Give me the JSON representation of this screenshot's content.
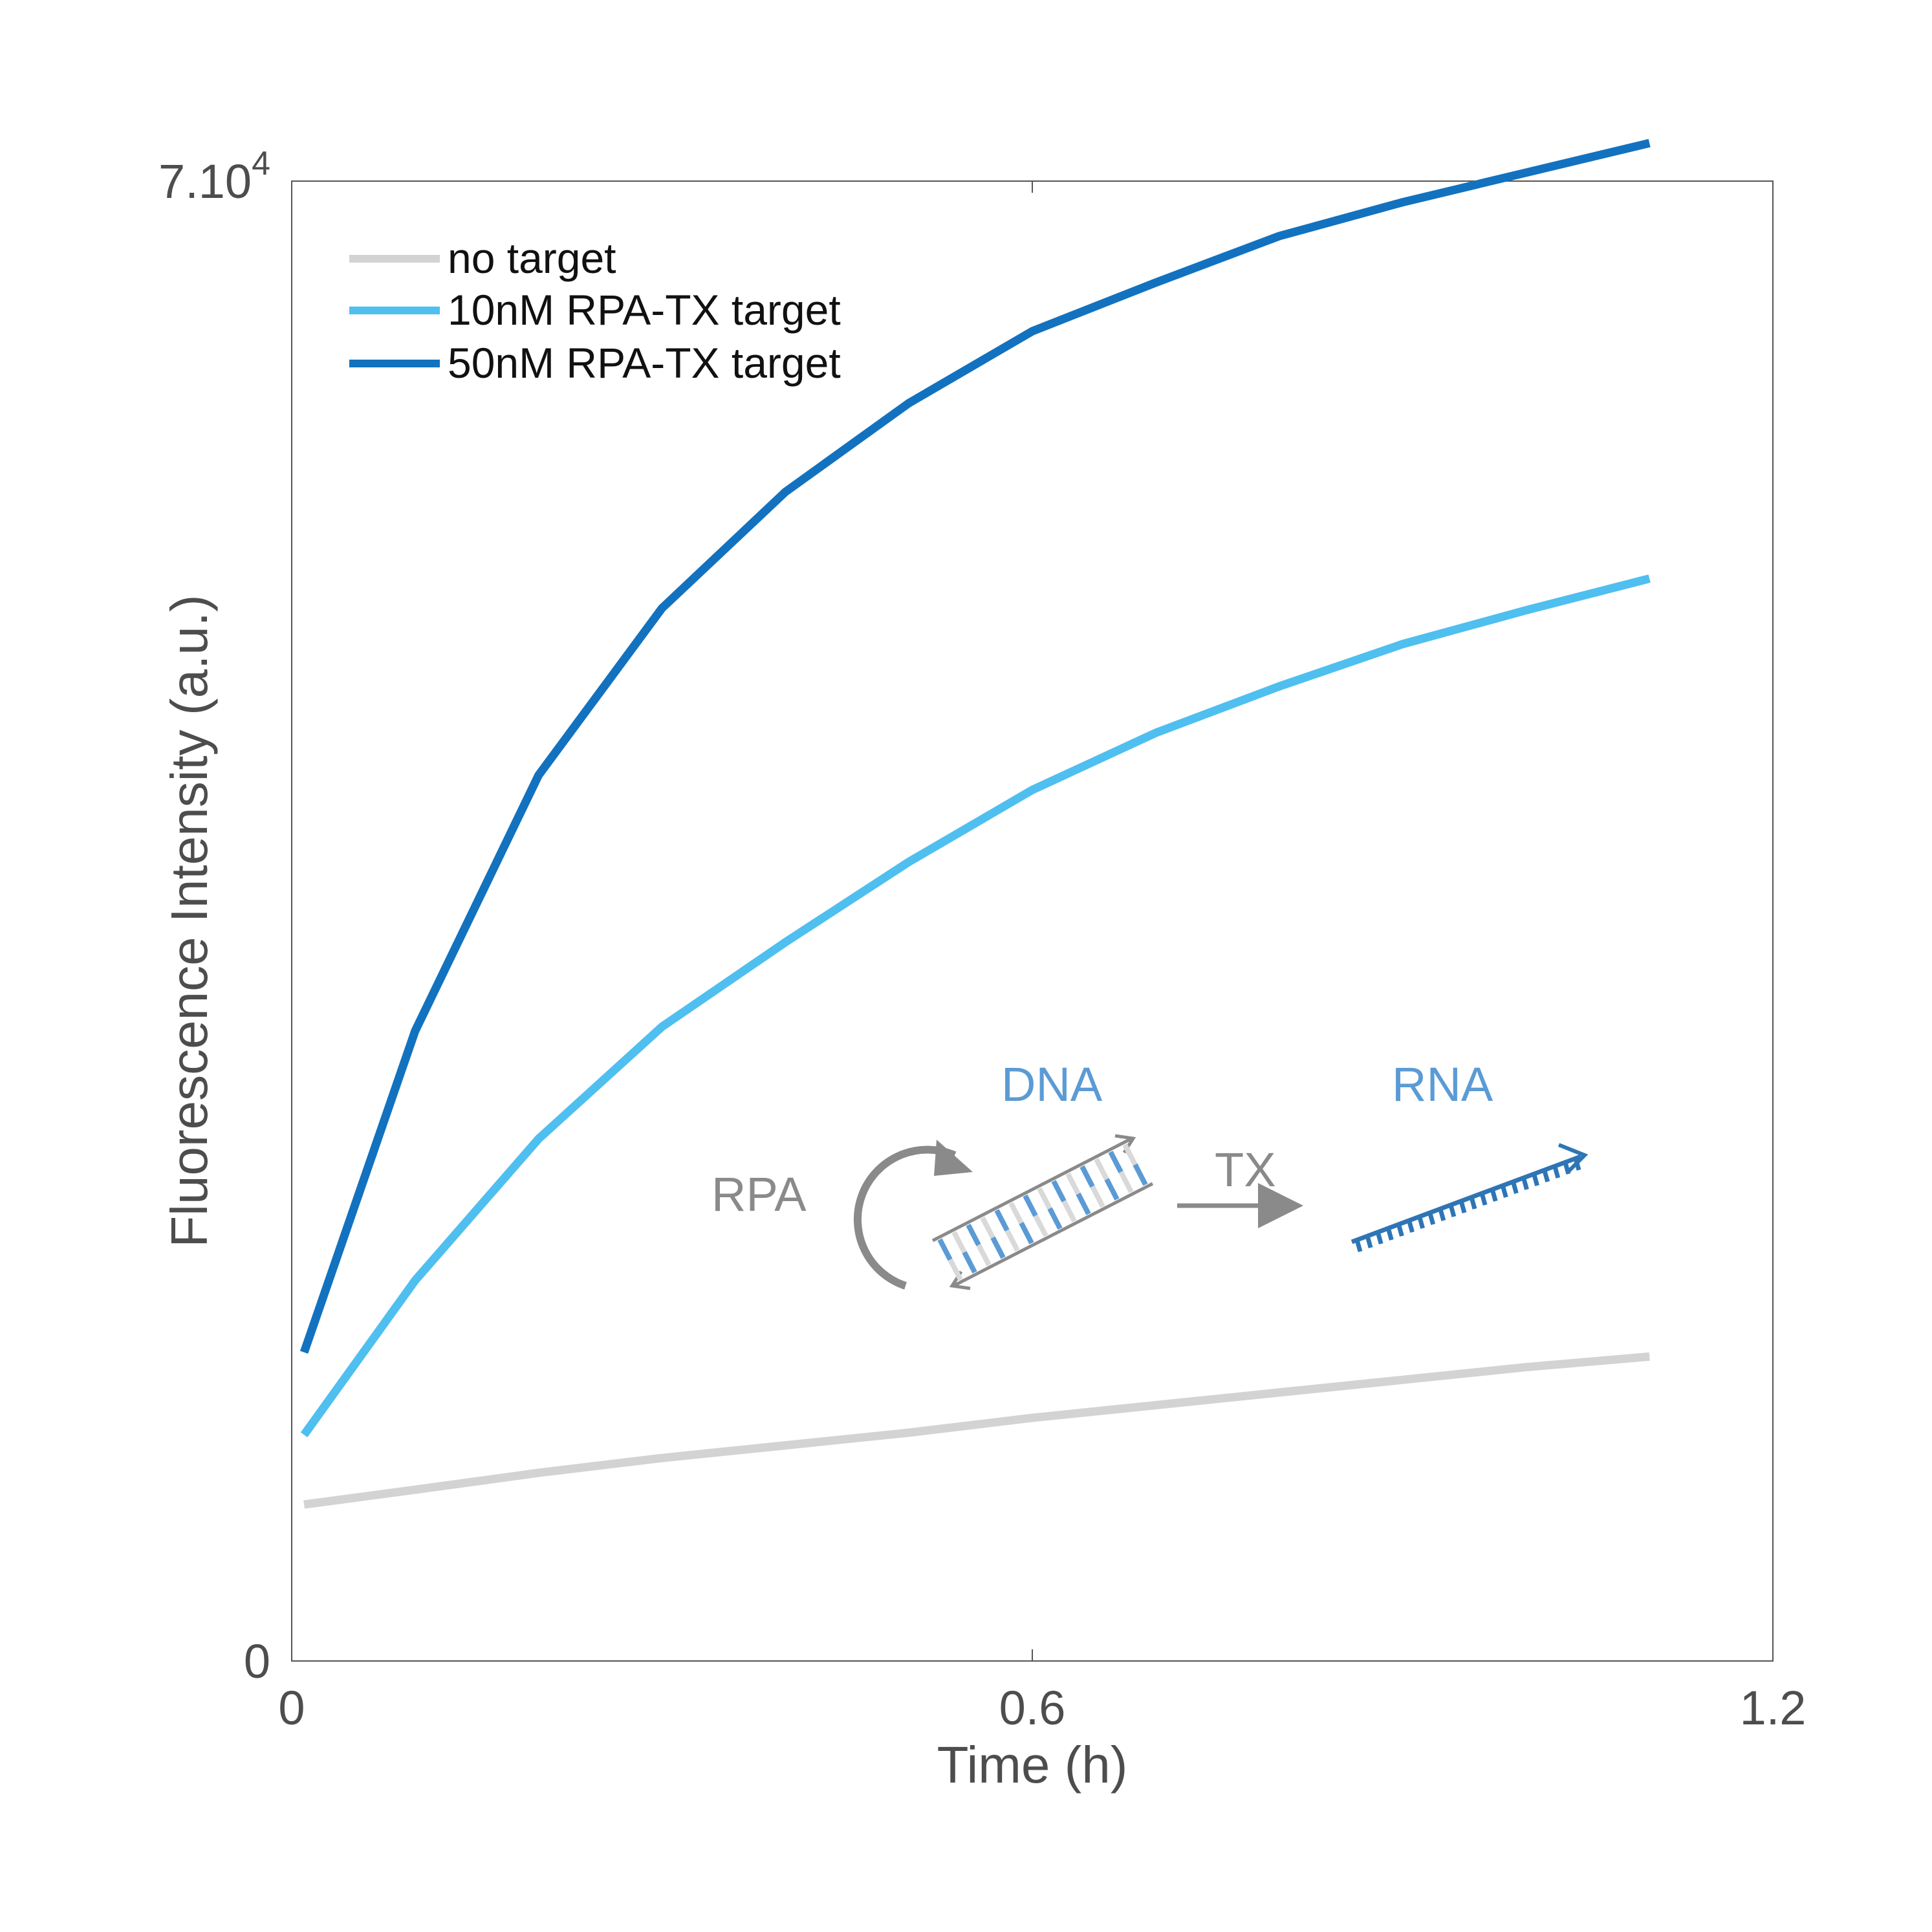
{
  "chart_data": {
    "type": "line",
    "xlabel": "Time (h)",
    "ylabel": "Fluorescence Intensity (a.u.)",
    "xlim": [
      0,
      1.2
    ],
    "ylim": [
      0,
      70000
    ],
    "x_ticks": [
      "0",
      "0.6",
      "1.2"
    ],
    "y_ticks": {
      "bottom": "0",
      "top_base": "7.10",
      "top_exp": "4"
    },
    "grid": false,
    "legend_position": "top-left",
    "series": [
      {
        "name": "no target",
        "color": "#d3d3d3",
        "x": [
          0.01,
          0.1,
          0.2,
          0.3,
          0.4,
          0.5,
          0.6,
          0.7,
          0.8,
          0.9,
          1.0,
          1.1
        ],
        "values": [
          7400,
          8100,
          8900,
          9600,
          10200,
          10800,
          11500,
          12100,
          12700,
          13300,
          13900,
          14400
        ]
      },
      {
        "name": "10nM RPA-TX target",
        "color": "#4fbfef",
        "x": [
          0.01,
          0.1,
          0.2,
          0.3,
          0.4,
          0.5,
          0.6,
          0.7,
          0.8,
          0.9,
          1.0,
          1.1
        ],
        "values": [
          10700,
          18000,
          24700,
          30000,
          34000,
          37800,
          41200,
          43900,
          46100,
          48100,
          49700,
          51200
        ]
      },
      {
        "name": "50nM RPA-TX target",
        "color": "#1272bf",
        "x": [
          0.01,
          0.1,
          0.2,
          0.3,
          0.4,
          0.5,
          0.6,
          0.7,
          0.8,
          0.9,
          1.0,
          1.1
        ],
        "values": [
          14600,
          29800,
          41900,
          49800,
          55300,
          59500,
          62900,
          65200,
          67400,
          69000,
          70400,
          71800
        ]
      }
    ],
    "annotations": {
      "rpa": "RPA",
      "dna": "DNA",
      "tx": "TX",
      "rna": "RNA"
    },
    "annotation_colors": {
      "gray": "#8a8a8a",
      "light_gray": "#d9d9d9",
      "dna_blue": "#5b9bd5",
      "rna_blue": "#2e75b6"
    }
  }
}
